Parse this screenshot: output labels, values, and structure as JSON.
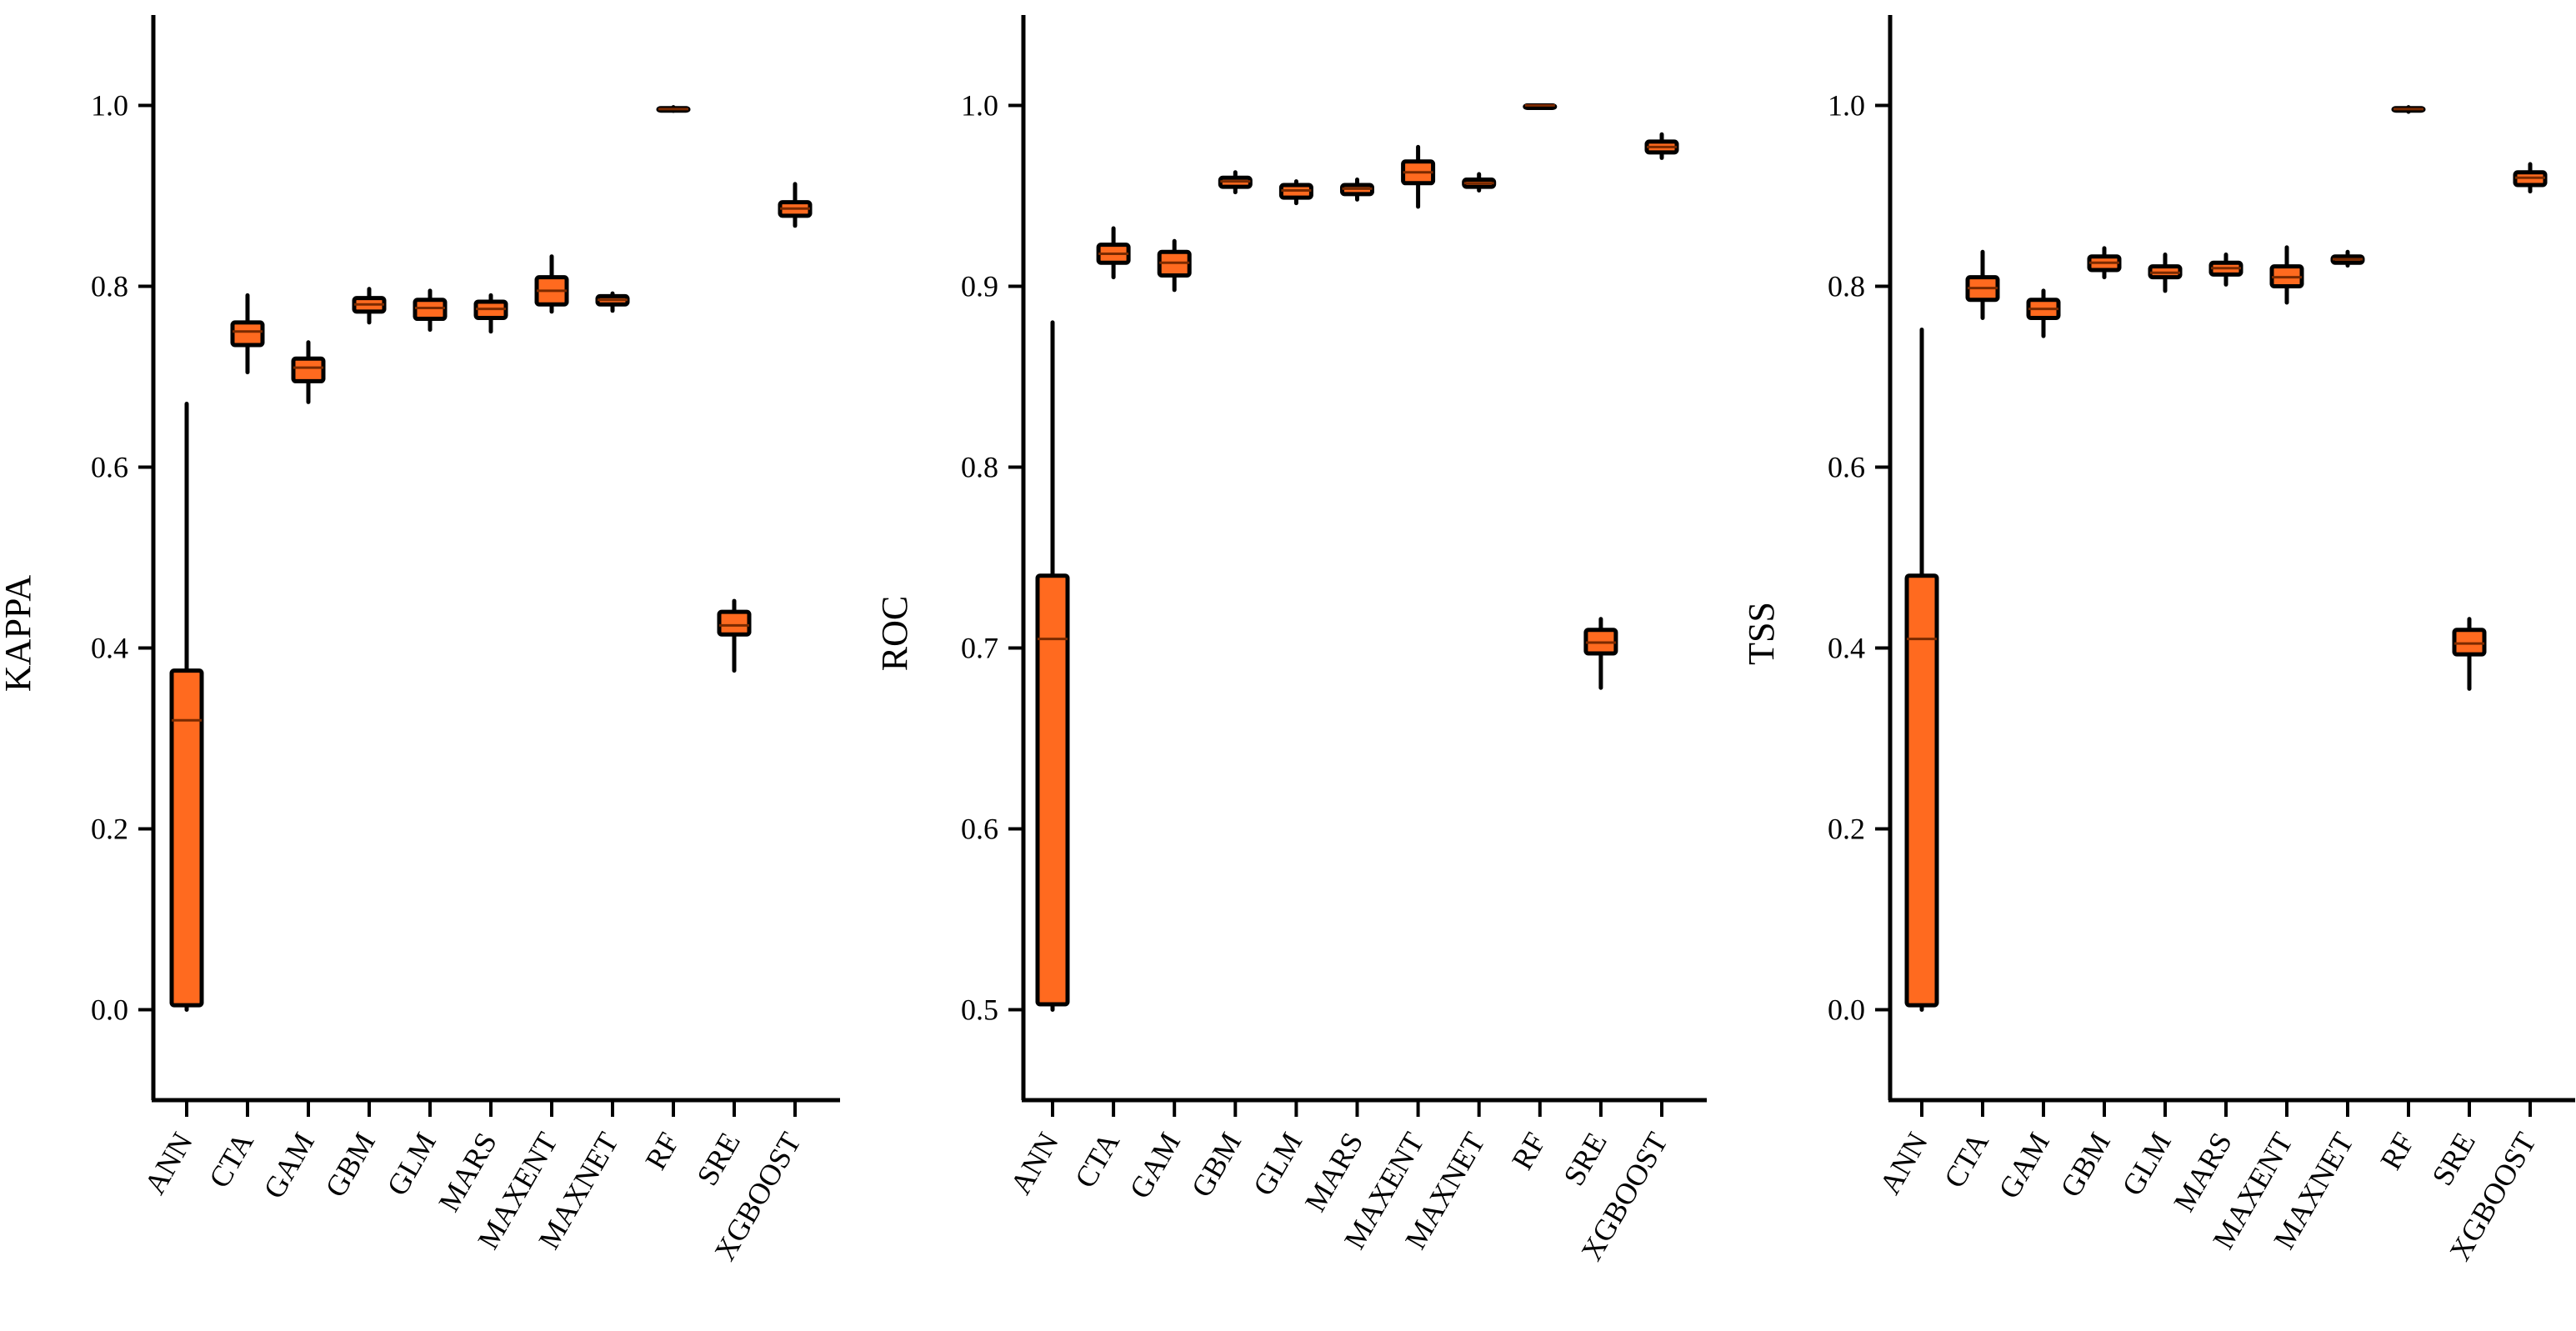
{
  "figure": {
    "box_fill": "#ff6a1f",
    "median_color": "#7a2a00",
    "line_color": "#000000"
  },
  "chart_data": [
    {
      "type": "box",
      "ylabel": "KAPPA",
      "ylim": [
        -0.1,
        1.1
      ],
      "yticks": [
        0.0,
        0.2,
        0.4,
        0.6,
        0.8,
        1.0
      ],
      "ytick_labels": [
        "0.0",
        "0.2",
        "0.4",
        "0.6",
        "0.8",
        "1.0"
      ],
      "categories": [
        "ANN",
        "CTA",
        "GAM",
        "GBM",
        "GLM",
        "MARS",
        "MAXENT",
        "MAXNET",
        "RF",
        "SRE",
        "XGBOOST"
      ],
      "boxes": [
        {
          "min": 0.0,
          "q1": 0.005,
          "median": 0.32,
          "q3": 0.375,
          "max": 0.67
        },
        {
          "min": 0.705,
          "q1": 0.735,
          "median": 0.75,
          "q3": 0.76,
          "max": 0.79
        },
        {
          "min": 0.672,
          "q1": 0.695,
          "median": 0.71,
          "q3": 0.72,
          "max": 0.738
        },
        {
          "min": 0.76,
          "q1": 0.772,
          "median": 0.78,
          "q3": 0.787,
          "max": 0.797
        },
        {
          "min": 0.752,
          "q1": 0.764,
          "median": 0.776,
          "q3": 0.785,
          "max": 0.795
        },
        {
          "min": 0.75,
          "q1": 0.765,
          "median": 0.775,
          "q3": 0.783,
          "max": 0.79
        },
        {
          "min": 0.772,
          "q1": 0.78,
          "median": 0.795,
          "q3": 0.81,
          "max": 0.833
        },
        {
          "min": 0.773,
          "q1": 0.78,
          "median": 0.785,
          "q3": 0.789,
          "max": 0.792
        },
        {
          "min": 0.994,
          "q1": 0.995,
          "median": 0.996,
          "q3": 0.997,
          "max": 0.998
        },
        {
          "min": 0.375,
          "q1": 0.415,
          "median": 0.425,
          "q3": 0.44,
          "max": 0.452
        },
        {
          "min": 0.867,
          "q1": 0.878,
          "median": 0.886,
          "q3": 0.893,
          "max": 0.913
        }
      ]
    },
    {
      "type": "box",
      "ylabel": "ROC",
      "ylim": [
        0.45,
        1.05
      ],
      "yticks": [
        0.5,
        0.6,
        0.7,
        0.8,
        0.9,
        1.0
      ],
      "ytick_labels": [
        "0.5",
        "0.6",
        "0.7",
        "0.8",
        "0.9",
        "1.0"
      ],
      "categories": [
        "ANN",
        "CTA",
        "GAM",
        "GBM",
        "GLM",
        "MARS",
        "MAXENT",
        "MAXNET",
        "RF",
        "SRE",
        "XGBOOST"
      ],
      "boxes": [
        {
          "min": 0.5,
          "q1": 0.503,
          "median": 0.705,
          "q3": 0.74,
          "max": 0.88
        },
        {
          "min": 0.905,
          "q1": 0.913,
          "median": 0.918,
          "q3": 0.923,
          "max": 0.932
        },
        {
          "min": 0.898,
          "q1": 0.906,
          "median": 0.913,
          "q3": 0.919,
          "max": 0.925
        },
        {
          "min": 0.952,
          "q1": 0.955,
          "median": 0.958,
          "q3": 0.96,
          "max": 0.963
        },
        {
          "min": 0.946,
          "q1": 0.949,
          "median": 0.953,
          "q3": 0.956,
          "max": 0.958
        },
        {
          "min": 0.948,
          "q1": 0.951,
          "median": 0.954,
          "q3": 0.956,
          "max": 0.959
        },
        {
          "min": 0.944,
          "q1": 0.957,
          "median": 0.963,
          "q3": 0.969,
          "max": 0.977
        },
        {
          "min": 0.953,
          "q1": 0.955,
          "median": 0.957,
          "q3": 0.959,
          "max": 0.962
        },
        {
          "min": 0.999,
          "q1": 0.9995,
          "median": 1.0,
          "q3": 1.0,
          "max": 1.0
        },
        {
          "min": 0.678,
          "q1": 0.697,
          "median": 0.703,
          "q3": 0.71,
          "max": 0.716
        },
        {
          "min": 0.971,
          "q1": 0.974,
          "median": 0.977,
          "q3": 0.98,
          "max": 0.984
        }
      ]
    },
    {
      "type": "box",
      "ylabel": "TSS",
      "ylim": [
        -0.1,
        1.1
      ],
      "yticks": [
        0.0,
        0.2,
        0.4,
        0.6,
        0.8,
        1.0
      ],
      "ytick_labels": [
        "0.0",
        "0.2",
        "0.4",
        "0.6",
        "0.8",
        "1.0"
      ],
      "categories": [
        "ANN",
        "CTA",
        "GAM",
        "GBM",
        "GLM",
        "MARS",
        "MAXENT",
        "MAXNET",
        "RF",
        "SRE",
        "XGBOOST"
      ],
      "boxes": [
        {
          "min": 0.0,
          "q1": 0.005,
          "median": 0.41,
          "q3": 0.48,
          "max": 0.752
        },
        {
          "min": 0.765,
          "q1": 0.785,
          "median": 0.798,
          "q3": 0.81,
          "max": 0.838
        },
        {
          "min": 0.745,
          "q1": 0.765,
          "median": 0.775,
          "q3": 0.785,
          "max": 0.795
        },
        {
          "min": 0.81,
          "q1": 0.818,
          "median": 0.826,
          "q3": 0.833,
          "max": 0.842
        },
        {
          "min": 0.795,
          "q1": 0.81,
          "median": 0.815,
          "q3": 0.822,
          "max": 0.835
        },
        {
          "min": 0.802,
          "q1": 0.813,
          "median": 0.82,
          "q3": 0.826,
          "max": 0.835
        },
        {
          "min": 0.782,
          "q1": 0.8,
          "median": 0.81,
          "q3": 0.822,
          "max": 0.843
        },
        {
          "min": 0.823,
          "q1": 0.826,
          "median": 0.83,
          "q3": 0.833,
          "max": 0.838
        },
        {
          "min": 0.993,
          "q1": 0.995,
          "median": 0.996,
          "q3": 0.997,
          "max": 0.998
        },
        {
          "min": 0.355,
          "q1": 0.393,
          "median": 0.405,
          "q3": 0.42,
          "max": 0.432
        },
        {
          "min": 0.905,
          "q1": 0.912,
          "median": 0.92,
          "q3": 0.926,
          "max": 0.935
        }
      ]
    }
  ]
}
